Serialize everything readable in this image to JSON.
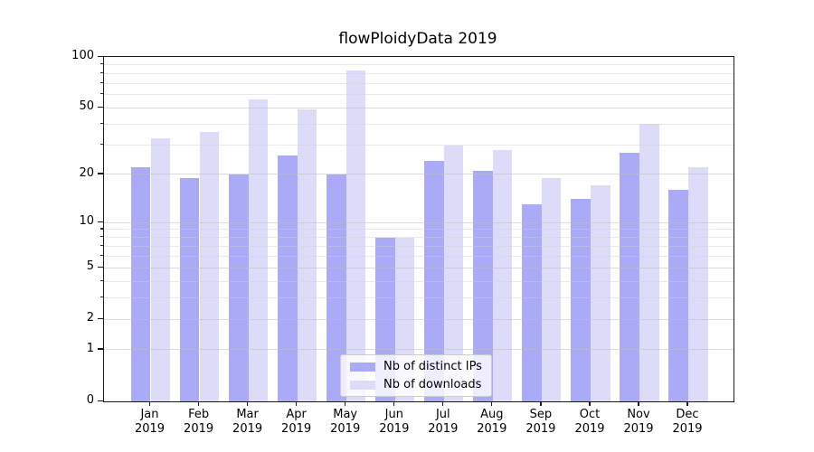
{
  "chart_data": {
    "type": "bar",
    "title": "flowPloidyData 2019",
    "categories": [
      "Jan",
      "Feb",
      "Mar",
      "Apr",
      "May",
      "Jun",
      "Jul",
      "Aug",
      "Sep",
      "Oct",
      "Nov",
      "Dec"
    ],
    "category_year": "2019",
    "series": [
      {
        "name": "Nb of distinct IPs",
        "slug": "distinct-ips",
        "color": "#aaaaf7",
        "values": [
          22,
          19,
          20,
          26,
          20,
          8,
          24,
          21,
          13,
          14,
          27,
          16
        ]
      },
      {
        "name": "Nb of downloads",
        "slug": "downloads",
        "color": "#dcdcf9",
        "values": [
          33,
          36,
          56,
          49,
          83,
          8,
          30,
          28,
          19,
          17,
          40,
          22
        ]
      }
    ],
    "y_axis": {
      "scale": "log1p",
      "min": 0,
      "max": 100,
      "tick_labels": [
        "100",
        "50",
        "20",
        "10",
        "5",
        "2",
        "1",
        "0"
      ],
      "major_ticks": [
        100,
        50,
        20,
        10,
        5,
        2,
        1,
        0
      ],
      "gridlines": [
        1,
        2,
        3,
        4,
        5,
        6,
        7,
        8,
        9,
        10,
        20,
        30,
        40,
        50,
        60,
        70,
        80,
        90
      ]
    },
    "xlabel": "",
    "ylabel": "",
    "grid": true,
    "legend_position": "lower center"
  },
  "legend": {
    "items": [
      {
        "label": "Nb of distinct IPs"
      },
      {
        "label": "Nb of downloads"
      }
    ]
  }
}
